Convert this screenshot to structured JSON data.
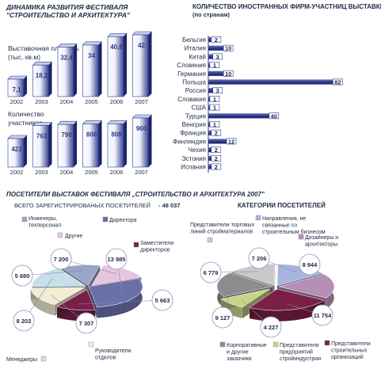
{
  "dynamics": {
    "title": "ДИНАМИКА РАЗВИТИЯ ФЕСТИВАЛЯ",
    "subtitle": "\"СТРОИТЕЛЬСТВО И АРХИТЕКТУРА\"",
    "area_label_1": "Выставочная площадь",
    "area_label_2": "(тыс. кв.м)",
    "participants_label_1": "Количество",
    "participants_label_2": "участников"
  },
  "countries_header": {
    "title": "КОЛИЧЕСТВО ИНОСТРАННЫХ ФИРМ-УЧАСТНИЦ ВЫСТАВКИ",
    "subtitle": "(по странам)"
  },
  "visitors": {
    "title": "ПОСЕТИТЕЛИ ВЫСТАВОК ФЕСТИВАЛЯ „СТРОИТЕЛЬСТВО И АРХИТЕКТУРА 2007\"",
    "total_label": "ВСЕГО ЗАРЕГИСТРИРОВАНЫХ ПОСЕТИТЕЛЕЙ",
    "total_value": "- 48 037"
  },
  "categories_title": "КАТЕГОРИИ ПОСЕТИТЕЛЕЙ",
  "colors": {
    "bar_dark": "#2e3a8c",
    "bar_light": "#eef0fb",
    "text": "#1f2a44",
    "box_3d": "#c9ceea"
  },
  "chart_data": [
    {
      "type": "bar",
      "id": "area",
      "categories": [
        "2002",
        "2003",
        "2004",
        "2005",
        "2006",
        "2007"
      ],
      "values": [
        7.1,
        18.2,
        32.4,
        34,
        40.6,
        42
      ],
      "value_labels": [
        "7,1",
        "18,2",
        "32,4",
        "34",
        "40,6",
        "42"
      ],
      "ylabel": "Выставочная площадь (тыс. кв.м)"
    },
    {
      "type": "bar",
      "id": "participants",
      "categories": [
        "2002",
        "2003",
        "2004",
        "2005",
        "2006",
        "2007"
      ],
      "values": [
        421,
        763,
        790,
        806,
        808,
        960
      ],
      "value_labels": [
        "421",
        "763",
        "790",
        "806",
        "808",
        "960"
      ],
      "ylabel": "Количество участников"
    },
    {
      "type": "bar",
      "id": "countries",
      "orientation": "horizontal",
      "categories": [
        "Бельгия",
        "Италия",
        "Китай",
        "Словения",
        "Германия",
        "Польша",
        "Россия",
        "Словакия",
        "США",
        "Турция",
        "Венгрия",
        "Франция",
        "Финляндия",
        "Чехия",
        "Эстония",
        "Испания"
      ],
      "values": [
        2,
        10,
        3,
        1,
        10,
        82,
        3,
        1,
        1,
        40,
        1,
        2,
        12,
        2,
        2,
        2
      ],
      "value_labels": [
        "2",
        "10",
        "3",
        "1",
        "10",
        "82",
        "3",
        "1",
        "1",
        "40",
        "1",
        "2",
        "12",
        "2",
        "2",
        "2"
      ]
    },
    {
      "type": "pie",
      "id": "visitors_pie",
      "slices": [
        {
          "label": "Инженеры, техперсонал",
          "value": 5680,
          "value_label": "5 680",
          "color": "#9aa6c8"
        },
        {
          "label": "Другие",
          "value": 7200,
          "value_label": "7 200",
          "color": "#e8c5de"
        },
        {
          "label": "Директора",
          "value": 13985,
          "value_label": "13 985",
          "color": "#6b6fa8"
        },
        {
          "label": "Заместители директоров",
          "value": 5663,
          "value_label": "5 663",
          "color": "#7a1f45"
        },
        {
          "label": "Руководители отделов",
          "value": 7307,
          "value_label": "7 307",
          "color": "#f3eed2"
        },
        {
          "label": "Менеджеры",
          "value": 8202,
          "value_label": "8 202",
          "color": "#c6dfe8"
        }
      ]
    },
    {
      "type": "pie",
      "id": "categories_pie",
      "slices": [
        {
          "label": "Представители торговых линий стройматериалов",
          "value": 6779,
          "value_label": "6 779",
          "color": "#c9c9c9"
        },
        {
          "label": "Направления, не связанные со строительным бизнесом",
          "value": 7206,
          "value_label": "7 206",
          "color": "#a9b4dc"
        },
        {
          "label": "Дизайнеры и архитекторы",
          "value": 8944,
          "value_label": "8 944",
          "color": "#b58fb8"
        },
        {
          "label": "Представители строительных организаций",
          "value": 11754,
          "value_label": "11 754",
          "color": "#7a1f45"
        },
        {
          "label": "Представители предприятий стройиндустрии",
          "value": 4227,
          "value_label": "4 227",
          "color": "#c9d48a"
        },
        {
          "label": "Корпоративные и другие заказчики",
          "value": 9127,
          "value_label": "9 127",
          "color": "#8c8c8c"
        }
      ]
    }
  ]
}
